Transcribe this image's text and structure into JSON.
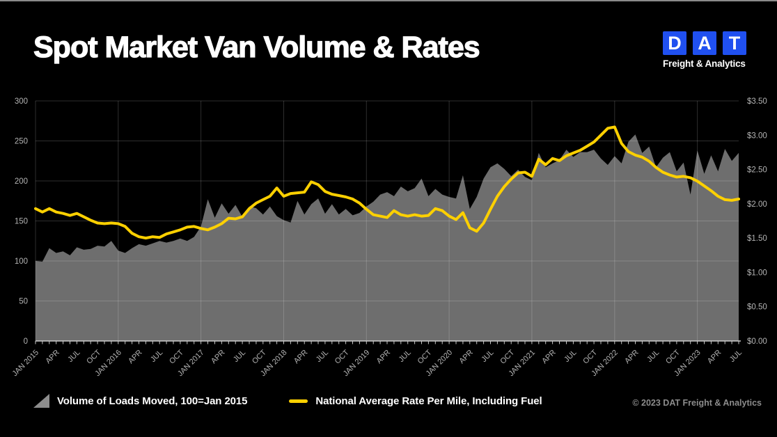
{
  "page": {
    "title": "Spot Market Van Volume & Rates"
  },
  "logo": {
    "letters": [
      "D",
      "A",
      "T"
    ],
    "tagline": "Freight & Analytics",
    "blue": "#2050F0"
  },
  "footer": {
    "copyright": "© 2023 DAT Freight & Analytics"
  },
  "colors": {
    "background": "#000000",
    "area_gray": "#6e6e6e",
    "rate_yellow": "#FDD000",
    "grid": "rgba(255,255,255,0.18)",
    "axis_text": "#b3b3b3",
    "axis_line": "#cccccc",
    "legend_triangle_gray": "#8d8d8d"
  },
  "chart_data": {
    "type": "area+line",
    "title": "Spot Market Van Volume & Rates",
    "xlabel": "",
    "ylabel_left": "",
    "ylabel_right": "",
    "x_start": "JAN 2015",
    "x_end": "JUL 2023",
    "x_interval": "monthly",
    "x_tick_labels": [
      "JAN 2015",
      "APR",
      "JUL",
      "OCT",
      "JAN 2016",
      "APR",
      "JUL",
      "OCT",
      "JAN 2017",
      "APR",
      "JUL",
      "OCT",
      "JAN 2018",
      "APR",
      "JUL",
      "OCT",
      "JAN 2019",
      "APR",
      "JUL",
      "OCT",
      "JAN 2020",
      "APR",
      "JUL",
      "OCT",
      "JAN 2021",
      "APR",
      "JUL",
      "OCT",
      "JAN 2022",
      "APR",
      "JUL",
      "OCT",
      "JAN 2023",
      "APR",
      "JUL"
    ],
    "left_axis": {
      "ticks": [
        0,
        50,
        100,
        150,
        200,
        250,
        300
      ],
      "range": [
        0,
        300
      ]
    },
    "right_axis": {
      "tick_labels": [
        "$0.00",
        "$0.50",
        "$1.00",
        "$1.50",
        "$2.00",
        "$2.50",
        "$3.00",
        "$3.50"
      ],
      "range": [
        0,
        3.5
      ]
    },
    "grid": true,
    "legend_position": "bottom",
    "series": [
      {
        "name": "Volume of Loads Moved, 100=Jan 2015",
        "type": "area",
        "axis": "left",
        "color": "#6e6e6e",
        "values": [
          100,
          99,
          116,
          110,
          112,
          107,
          117,
          114,
          115,
          119,
          118,
          125,
          113,
          110,
          116,
          121,
          119,
          122,
          125,
          123,
          125,
          128,
          125,
          130,
          143,
          177,
          154,
          172,
          159,
          170,
          155,
          168,
          166,
          158,
          168,
          156,
          151,
          148,
          175,
          158,
          171,
          178,
          159,
          171,
          158,
          165,
          157,
          160,
          168,
          174,
          183,
          186,
          181,
          193,
          187,
          191,
          203,
          181,
          190,
          183,
          180,
          178,
          207,
          165,
          180,
          203,
          217,
          222,
          215,
          206,
          214,
          205,
          201,
          235,
          217,
          222,
          226,
          239,
          230,
          236,
          236,
          239,
          228,
          220,
          231,
          222,
          249,
          258,
          235,
          243,
          217,
          229,
          236,
          212,
          223,
          183,
          238,
          209,
          232,
          212,
          240,
          225,
          235
        ]
      },
      {
        "name": "National Average Rate Per Mile, Including Fuel",
        "type": "line",
        "axis": "right",
        "color": "#FDD000",
        "values": [
          1.93,
          1.88,
          1.93,
          1.88,
          1.86,
          1.83,
          1.86,
          1.81,
          1.76,
          1.72,
          1.71,
          1.72,
          1.71,
          1.67,
          1.57,
          1.52,
          1.5,
          1.52,
          1.51,
          1.56,
          1.59,
          1.62,
          1.66,
          1.67,
          1.64,
          1.62,
          1.66,
          1.71,
          1.79,
          1.78,
          1.81,
          1.93,
          2.01,
          2.06,
          2.11,
          2.23,
          2.11,
          2.15,
          2.16,
          2.17,
          2.32,
          2.28,
          2.18,
          2.14,
          2.12,
          2.1,
          2.07,
          2.01,
          1.92,
          1.84,
          1.82,
          1.8,
          1.9,
          1.84,
          1.82,
          1.84,
          1.82,
          1.83,
          1.93,
          1.9,
          1.82,
          1.77,
          1.87,
          1.65,
          1.6,
          1.72,
          1.92,
          2.11,
          2.25,
          2.36,
          2.45,
          2.46,
          2.4,
          2.65,
          2.57,
          2.66,
          2.63,
          2.7,
          2.74,
          2.78,
          2.84,
          2.9,
          3.0,
          3.1,
          3.12,
          2.88,
          2.76,
          2.71,
          2.68,
          2.62,
          2.53,
          2.46,
          2.42,
          2.39,
          2.4,
          2.38,
          2.33,
          2.26,
          2.19,
          2.11,
          2.06,
          2.05,
          2.07
        ]
      }
    ]
  }
}
